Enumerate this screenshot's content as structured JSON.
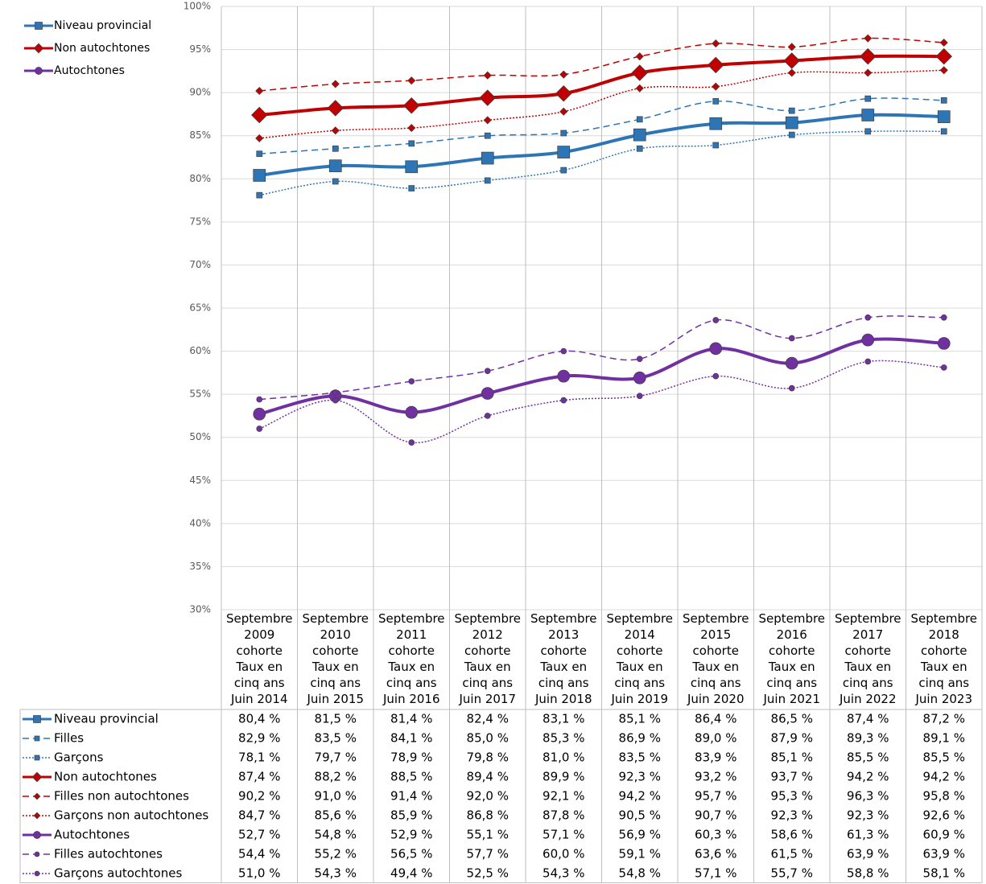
{
  "chart_data": {
    "type": "line",
    "categories": [
      "Septembre\n2009\ncohorte\nTaux en\ncinq ans\nJuin 2014",
      "Septembre\n2010\ncohorte\nTaux en\ncinq ans\nJuin 2015",
      "Septembre\n2011\ncohorte\nTaux en\ncinq ans\nJuin 2016",
      "Septembre\n2012\ncohorte\nTaux en\ncinq ans\nJuin 2017",
      "Septembre\n2013\ncohorte\nTaux en\ncinq ans\nJuin 2018",
      "Septembre\n2014\ncohorte\nTaux en\ncinq ans\nJuin 2019",
      "Septembre\n2015\ncohorte\nTaux en\ncinq ans\nJuin 2020",
      "Septembre\n2016\ncohorte\nTaux en\ncinq ans\nJuin 2021",
      "Septembre\n2017\ncohorte\nTaux en\ncinq ans\nJuin 2022",
      "Septembre\n2018\ncohorte\nTaux en\ncinq ans\nJuin 2023"
    ],
    "ylim": [
      30,
      100
    ],
    "yticks": [
      {
        "value": 30,
        "label": "30%"
      },
      {
        "value": 35,
        "label": "35%"
      },
      {
        "value": 40,
        "label": "40%"
      },
      {
        "value": 45,
        "label": "45%"
      },
      {
        "value": 50,
        "label": "50%"
      },
      {
        "value": 55,
        "label": "55%"
      },
      {
        "value": 60,
        "label": "60%"
      },
      {
        "value": 65,
        "label": "65%"
      },
      {
        "value": 70,
        "label": "70%"
      },
      {
        "value": 75,
        "label": "75%"
      },
      {
        "value": 80,
        "label": "80%"
      },
      {
        "value": 85,
        "label": "85%"
      },
      {
        "value": 90,
        "label": "90%"
      },
      {
        "value": 95,
        "label": "95%"
      },
      {
        "value": 100,
        "label": "100%"
      }
    ],
    "grid": true,
    "legend": "top-left",
    "series": [
      {
        "name": "Niveau provincial",
        "color": "#2e75b6",
        "line_style": "solid",
        "marker": "square",
        "emphasis": true,
        "values": [
          80.4,
          81.5,
          81.4,
          82.4,
          83.1,
          85.1,
          86.4,
          86.5,
          87.4,
          87.2
        ],
        "value_labels": [
          "80,4 %",
          "81,5 %",
          "81,4 %",
          "82,4 %",
          "83,1 %",
          "85,1 %",
          "86,4 %",
          "86,5 %",
          "87,4 %",
          "87,2 %"
        ]
      },
      {
        "name": "Filles",
        "color": "#2e75b6",
        "line_style": "dashed",
        "marker": "square",
        "emphasis": false,
        "values": [
          82.9,
          83.5,
          84.1,
          85.0,
          85.3,
          86.9,
          89.0,
          87.9,
          89.3,
          89.1
        ],
        "value_labels": [
          "82,9 %",
          "83,5 %",
          "84,1 %",
          "85,0 %",
          "85,3 %",
          "86,9 %",
          "89,0 %",
          "87,9 %",
          "89,3 %",
          "89,1 %"
        ]
      },
      {
        "name": "Garçons",
        "color": "#2e75b6",
        "line_style": "dotted",
        "marker": "square",
        "emphasis": false,
        "values": [
          78.1,
          79.7,
          78.9,
          79.8,
          81.0,
          83.5,
          83.9,
          85.1,
          85.5,
          85.5
        ],
        "value_labels": [
          "78,1 %",
          "79,7 %",
          "78,9 %",
          "79,8 %",
          "81,0 %",
          "83,5 %",
          "83,9 %",
          "85,1 %",
          "85,5 %",
          "85,5 %"
        ]
      },
      {
        "name": "Non autochtones",
        "color": "#c00000",
        "line_style": "solid",
        "marker": "diamond",
        "emphasis": true,
        "values": [
          87.4,
          88.2,
          88.5,
          89.4,
          89.9,
          92.3,
          93.2,
          93.7,
          94.2,
          94.2
        ],
        "value_labels": [
          "87,4 %",
          "88,2 %",
          "88,5 %",
          "89,4 %",
          "89,9 %",
          "92,3 %",
          "93,2 %",
          "93,7 %",
          "94,2 %",
          "94,2 %"
        ]
      },
      {
        "name": "Filles non autochtones",
        "color": "#c00000",
        "line_style": "dashed",
        "marker": "diamond",
        "emphasis": false,
        "values": [
          90.2,
          91.0,
          91.4,
          92.0,
          92.1,
          94.2,
          95.7,
          95.3,
          96.3,
          95.8
        ],
        "value_labels": [
          "90,2 %",
          "91,0 %",
          "91,4 %",
          "92,0 %",
          "92,1 %",
          "94,2 %",
          "95,7 %",
          "95,3 %",
          "96,3 %",
          "95,8 %"
        ]
      },
      {
        "name": "Garçons non autochtones",
        "color": "#c00000",
        "line_style": "dotted",
        "marker": "diamond",
        "emphasis": false,
        "values": [
          84.7,
          85.6,
          85.9,
          86.8,
          87.8,
          90.5,
          90.7,
          92.3,
          92.3,
          92.6
        ],
        "value_labels": [
          "84,7 %",
          "85,6 %",
          "85,9 %",
          "86,8 %",
          "87,8 %",
          "90,5 %",
          "90,7 %",
          "92,3 %",
          "92,3 %",
          "92,6 %"
        ]
      },
      {
        "name": "Autochtones",
        "color": "#7030a0",
        "line_style": "solid",
        "marker": "circle",
        "emphasis": true,
        "values": [
          52.7,
          54.8,
          52.9,
          55.1,
          57.1,
          56.9,
          60.3,
          58.6,
          61.3,
          60.9
        ],
        "value_labels": [
          "52,7 %",
          "54,8 %",
          "52,9 %",
          "55,1 %",
          "57,1 %",
          "56,9 %",
          "60,3 %",
          "58,6 %",
          "61,3 %",
          "60,9 %"
        ]
      },
      {
        "name": "Filles autochtones",
        "color": "#7030a0",
        "line_style": "dashed",
        "marker": "circle",
        "emphasis": false,
        "values": [
          54.4,
          55.2,
          56.5,
          57.7,
          60.0,
          59.1,
          63.6,
          61.5,
          63.9,
          63.9
        ],
        "value_labels": [
          "54,4 %",
          "55,2 %",
          "56,5 %",
          "57,7 %",
          "60,0 %",
          "59,1 %",
          "63,6 %",
          "61,5 %",
          "63,9 %",
          "63,9 %"
        ]
      },
      {
        "name": "Garçons autochtones",
        "color": "#7030a0",
        "line_style": "dotted",
        "marker": "circle",
        "emphasis": false,
        "values": [
          51.0,
          54.3,
          49.4,
          52.5,
          54.3,
          54.8,
          57.1,
          55.7,
          58.8,
          58.1
        ],
        "value_labels": [
          "51,0 %",
          "54,3 %",
          "49,4 %",
          "52,5 %",
          "54,3 %",
          "54,8 %",
          "57,1 %",
          "55,7 %",
          "58,8 %",
          "58,1 %"
        ]
      }
    ]
  }
}
